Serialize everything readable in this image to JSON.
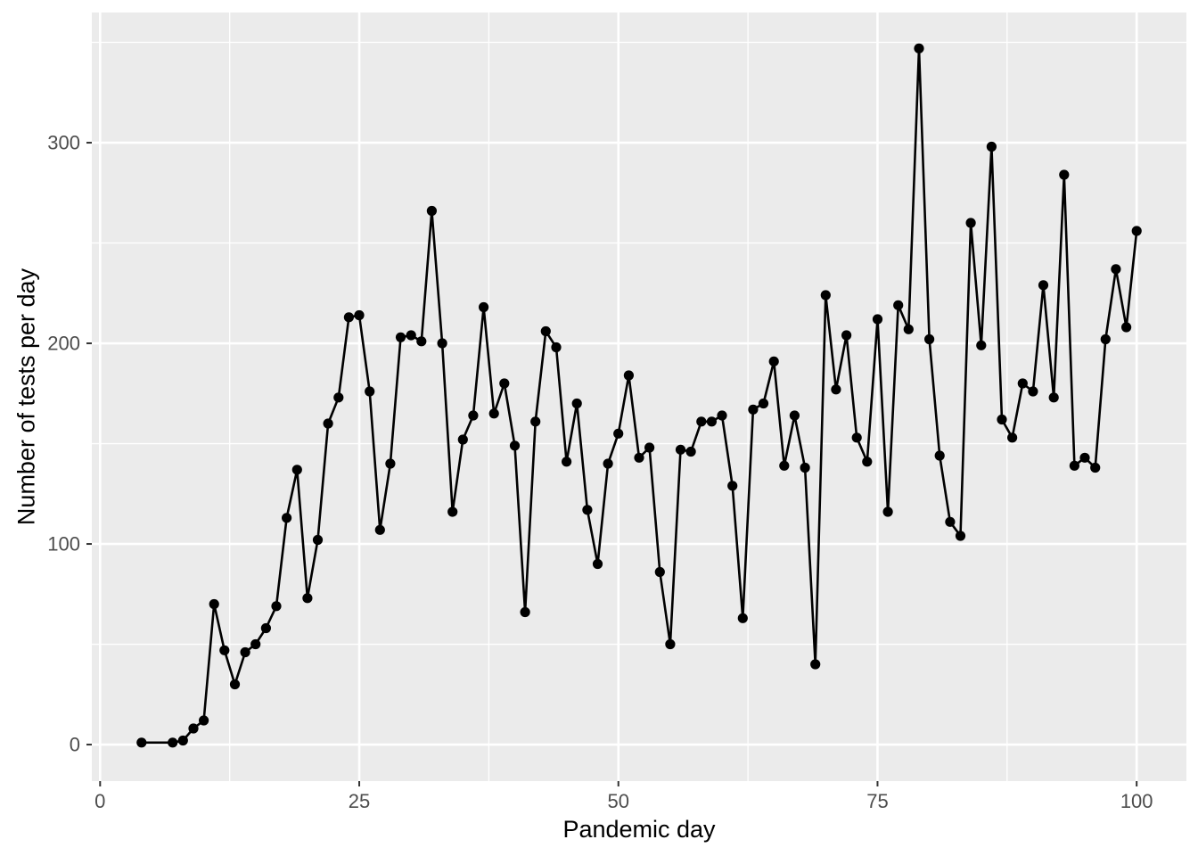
{
  "chart_data": {
    "type": "line",
    "title": "",
    "xlabel": "Pandemic day",
    "ylabel": "Number of tests per day",
    "x": [
      4,
      7,
      8,
      9,
      10,
      11,
      12,
      13,
      14,
      15,
      16,
      17,
      18,
      19,
      20,
      21,
      22,
      23,
      24,
      25,
      26,
      27,
      28,
      29,
      30,
      31,
      32,
      33,
      34,
      35,
      36,
      37,
      38,
      39,
      40,
      41,
      42,
      43,
      44,
      45,
      46,
      47,
      48,
      49,
      50,
      51,
      52,
      53,
      54,
      55,
      56,
      57,
      58,
      59,
      60,
      61,
      62,
      63,
      64,
      65,
      66,
      67,
      68,
      69,
      70,
      71,
      72,
      73,
      74,
      75,
      76,
      77,
      78,
      79,
      80,
      81,
      82,
      83,
      84,
      85,
      86,
      87,
      88,
      89,
      90,
      91,
      92,
      93,
      94,
      95,
      96,
      97,
      98,
      99,
      100
    ],
    "y": [
      1,
      1,
      2,
      8,
      12,
      70,
      47,
      30,
      46,
      50,
      58,
      69,
      113,
      137,
      73,
      102,
      160,
      173,
      213,
      214,
      176,
      107,
      140,
      203,
      204,
      201,
      266,
      200,
      116,
      152,
      164,
      218,
      165,
      180,
      149,
      66,
      161,
      206,
      198,
      141,
      170,
      117,
      90,
      140,
      155,
      184,
      143,
      148,
      86,
      50,
      147,
      146,
      161,
      161,
      164,
      129,
      63,
      167,
      170,
      191,
      139,
      164,
      138,
      40,
      224,
      177,
      204,
      153,
      141,
      212,
      116,
      219,
      207,
      347,
      202,
      144,
      111,
      104,
      260,
      199,
      298,
      162,
      153,
      180,
      176,
      229,
      173,
      284,
      139,
      143,
      138,
      202,
      237,
      208,
      256
    ],
    "x_ticks": {
      "major": [
        0,
        25,
        50,
        75,
        100
      ],
      "minor": [
        12.5,
        37.5,
        62.5,
        87.5
      ]
    },
    "y_ticks": {
      "major": [
        0,
        100,
        200,
        300
      ],
      "minor": [
        50,
        150,
        250,
        350
      ]
    },
    "xlim": [
      -0.8,
      104.8
    ],
    "ylim": [
      -18.2,
      364.9
    ],
    "grid": true,
    "legend": false,
    "marker": "point",
    "style": {
      "panel_bg": "#EBEBEB",
      "grid_color": "#FFFFFF",
      "line_color": "#000000",
      "point_color": "#000000",
      "tick_label_color": "#4D4D4D",
      "tick_mark_color": "#333333",
      "axis_title_color": "#000000"
    }
  }
}
